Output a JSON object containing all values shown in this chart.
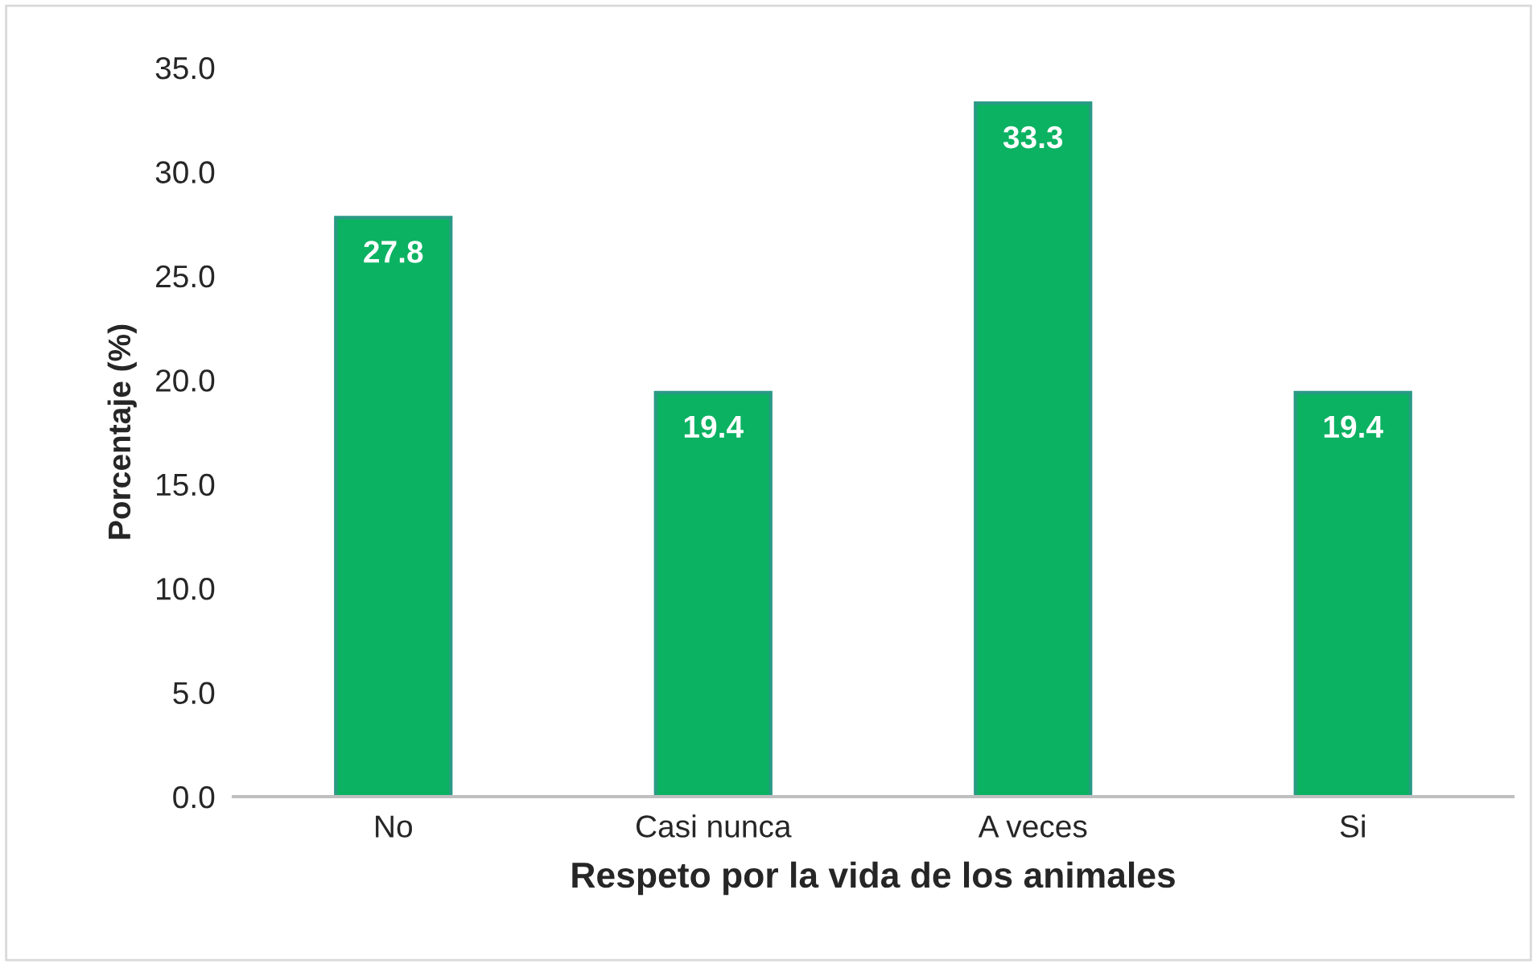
{
  "chart_data": {
    "type": "bar",
    "categories": [
      "No",
      "Casi nunca",
      "A veces",
      "Si"
    ],
    "values": [
      27.8,
      19.4,
      33.3,
      19.4
    ],
    "color": "#0bb262",
    "xlabel": "Respeto por la vida de los animales",
    "ylabel": "Porcentaje (%)",
    "ylim": [
      0,
      35
    ],
    "yticks": [
      {
        "value": 0,
        "label": "0.0"
      },
      {
        "value": 5,
        "label": "5.0"
      },
      {
        "value": 10,
        "label": "10.0"
      },
      {
        "value": 15,
        "label": "15.0"
      },
      {
        "value": 20,
        "label": "20.0"
      },
      {
        "value": 25,
        "label": "25.0"
      },
      {
        "value": 30,
        "label": "30.0"
      },
      {
        "value": 35,
        "label": "35.0"
      }
    ],
    "grid": false,
    "legend": false,
    "data_labels": true
  }
}
